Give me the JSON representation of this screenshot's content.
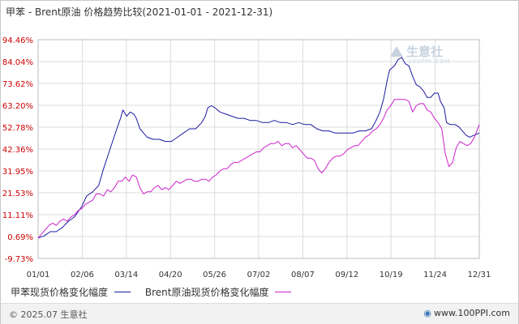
{
  "title": "甲苯 - Brent原油 价格趋势比较(2021-01-01 - 2021-12-31)",
  "watermark": {
    "name": "生意社",
    "url": "100PPI.COM"
  },
  "footer": {
    "copyright": "© 2025.07 生意社",
    "site": "www.100PPI.com"
  },
  "colors": {
    "series1": "#1a1aa0",
    "series2": "#cc22cc",
    "grid": "#dcdcdc",
    "ytick": "#cc0000"
  },
  "chart_data": {
    "type": "line",
    "yticks": [
      "94.46%",
      "84.04%",
      "73.62%",
      "63.20%",
      "52.78%",
      "42.36%",
      "31.95%",
      "21.53%",
      "11.11%",
      "0.69%",
      "-9.73%"
    ],
    "xticks": [
      "01/01",
      "02/06",
      "03/14",
      "04/20",
      "05/26",
      "07/02",
      "08/07",
      "09/12",
      "10/19",
      "11/24",
      "12/31"
    ],
    "ylim": [
      -9.73,
      94.46
    ],
    "xlim": [
      0,
      364
    ],
    "x_unit": "day of 2021",
    "grid": true,
    "legend_position": "bottom-left",
    "series": [
      {
        "name": "甲苯现货价格变化幅度",
        "color": "#1a1aa0",
        "points": [
          [
            0,
            0
          ],
          [
            5,
            1
          ],
          [
            10,
            3
          ],
          [
            15,
            3
          ],
          [
            20,
            5
          ],
          [
            25,
            8
          ],
          [
            30,
            10
          ],
          [
            36,
            15
          ],
          [
            40,
            20
          ],
          [
            45,
            22
          ],
          [
            50,
            25
          ],
          [
            54,
            33
          ],
          [
            58,
            40
          ],
          [
            62,
            47
          ],
          [
            65,
            52
          ],
          [
            68,
            57
          ],
          [
            70,
            61
          ],
          [
            73,
            58
          ],
          [
            76,
            60
          ],
          [
            79,
            59
          ],
          [
            81,
            57
          ],
          [
            84,
            52
          ],
          [
            87,
            50
          ],
          [
            90,
            48
          ],
          [
            95,
            47
          ],
          [
            100,
            47
          ],
          [
            105,
            46
          ],
          [
            110,
            46
          ],
          [
            115,
            48
          ],
          [
            120,
            50
          ],
          [
            125,
            52
          ],
          [
            130,
            52
          ],
          [
            135,
            55
          ],
          [
            138,
            58
          ],
          [
            140,
            62
          ],
          [
            143,
            63
          ],
          [
            146,
            62
          ],
          [
            150,
            60
          ],
          [
            155,
            59
          ],
          [
            160,
            58
          ],
          [
            165,
            57
          ],
          [
            170,
            57
          ],
          [
            175,
            56
          ],
          [
            180,
            56
          ],
          [
            185,
            55
          ],
          [
            190,
            55
          ],
          [
            195,
            56
          ],
          [
            200,
            55
          ],
          [
            205,
            55
          ],
          [
            210,
            54
          ],
          [
            215,
            55
          ],
          [
            220,
            54
          ],
          [
            225,
            54
          ],
          [
            230,
            52
          ],
          [
            235,
            51
          ],
          [
            240,
            51
          ],
          [
            245,
            50
          ],
          [
            250,
            50
          ],
          [
            255,
            50
          ],
          [
            260,
            50
          ],
          [
            265,
            51
          ],
          [
            270,
            51
          ],
          [
            275,
            52
          ],
          [
            278,
            55
          ],
          [
            282,
            60
          ],
          [
            285,
            66
          ],
          [
            288,
            75
          ],
          [
            290,
            80
          ],
          [
            294,
            82
          ],
          [
            297,
            85
          ],
          [
            300,
            86
          ],
          [
            303,
            83
          ],
          [
            306,
            82
          ],
          [
            309,
            77
          ],
          [
            312,
            73
          ],
          [
            315,
            72
          ],
          [
            318,
            70
          ],
          [
            321,
            67
          ],
          [
            324,
            67
          ],
          [
            327,
            69
          ],
          [
            330,
            69
          ],
          [
            332,
            65
          ],
          [
            335,
            62
          ],
          [
            337,
            55
          ],
          [
            340,
            54
          ],
          [
            344,
            54
          ],
          [
            347,
            53
          ],
          [
            350,
            51
          ],
          [
            353,
            49
          ],
          [
            356,
            48
          ],
          [
            360,
            49
          ],
          [
            364,
            50
          ]
        ]
      },
      {
        "name": "Brent原油现货价格变化幅度",
        "color": "#cc22cc",
        "points": [
          [
            0,
            0
          ],
          [
            3,
            2
          ],
          [
            6,
            4
          ],
          [
            9,
            6
          ],
          [
            12,
            7
          ],
          [
            15,
            6
          ],
          [
            18,
            8
          ],
          [
            21,
            9
          ],
          [
            24,
            8
          ],
          [
            27,
            10
          ],
          [
            30,
            11
          ],
          [
            33,
            13
          ],
          [
            36,
            14
          ],
          [
            39,
            16
          ],
          [
            42,
            17
          ],
          [
            45,
            18
          ],
          [
            48,
            21
          ],
          [
            51,
            21
          ],
          [
            54,
            20
          ],
          [
            57,
            23
          ],
          [
            60,
            22
          ],
          [
            63,
            24
          ],
          [
            66,
            27
          ],
          [
            69,
            27
          ],
          [
            72,
            29
          ],
          [
            75,
            27
          ],
          [
            78,
            30
          ],
          [
            81,
            29
          ],
          [
            84,
            24
          ],
          [
            87,
            21
          ],
          [
            90,
            22
          ],
          [
            93,
            22
          ],
          [
            96,
            24
          ],
          [
            99,
            25
          ],
          [
            102,
            23
          ],
          [
            105,
            24
          ],
          [
            108,
            23
          ],
          [
            111,
            25
          ],
          [
            114,
            27
          ],
          [
            117,
            26
          ],
          [
            120,
            27
          ],
          [
            123,
            28
          ],
          [
            126,
            28
          ],
          [
            129,
            27
          ],
          [
            132,
            27
          ],
          [
            135,
            28
          ],
          [
            138,
            28
          ],
          [
            141,
            27
          ],
          [
            144,
            29
          ],
          [
            147,
            30
          ],
          [
            150,
            32
          ],
          [
            153,
            33
          ],
          [
            156,
            33
          ],
          [
            159,
            35
          ],
          [
            162,
            36
          ],
          [
            165,
            36
          ],
          [
            168,
            37
          ],
          [
            171,
            38
          ],
          [
            174,
            39
          ],
          [
            177,
            40
          ],
          [
            180,
            41
          ],
          [
            183,
            41
          ],
          [
            186,
            43
          ],
          [
            189,
            44
          ],
          [
            192,
            45
          ],
          [
            195,
            45
          ],
          [
            198,
            46
          ],
          [
            201,
            44
          ],
          [
            204,
            45
          ],
          [
            207,
            45
          ],
          [
            210,
            43
          ],
          [
            213,
            44
          ],
          [
            216,
            42
          ],
          [
            219,
            40
          ],
          [
            222,
            38
          ],
          [
            225,
            38
          ],
          [
            228,
            37
          ],
          [
            231,
            33
          ],
          [
            234,
            31
          ],
          [
            237,
            33
          ],
          [
            240,
            36
          ],
          [
            243,
            38
          ],
          [
            246,
            39
          ],
          [
            249,
            39
          ],
          [
            252,
            40
          ],
          [
            255,
            42
          ],
          [
            258,
            43
          ],
          [
            261,
            44
          ],
          [
            264,
            44
          ],
          [
            267,
            46
          ],
          [
            270,
            48
          ],
          [
            273,
            49
          ],
          [
            276,
            51
          ],
          [
            279,
            52
          ],
          [
            282,
            54
          ],
          [
            285,
            57
          ],
          [
            288,
            61
          ],
          [
            291,
            63
          ],
          [
            294,
            66
          ],
          [
            297,
            66
          ],
          [
            300,
            66
          ],
          [
            303,
            66
          ],
          [
            306,
            65
          ],
          [
            309,
            60
          ],
          [
            312,
            63
          ],
          [
            315,
            64
          ],
          [
            318,
            64
          ],
          [
            321,
            61
          ],
          [
            324,
            60
          ],
          [
            327,
            57
          ],
          [
            330,
            55
          ],
          [
            333,
            52
          ],
          [
            336,
            40
          ],
          [
            339,
            34
          ],
          [
            342,
            36
          ],
          [
            345,
            43
          ],
          [
            348,
            46
          ],
          [
            351,
            45
          ],
          [
            354,
            44
          ],
          [
            357,
            45
          ],
          [
            360,
            48
          ],
          [
            364,
            54
          ]
        ]
      }
    ]
  }
}
